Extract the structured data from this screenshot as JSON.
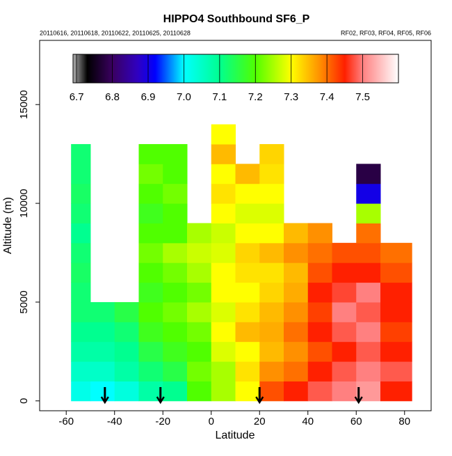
{
  "chart_data": {
    "type": "heatmap",
    "title": "HIPPO4 Southbound SF6_P",
    "subtitle_left": "20110616, 20110618, 20110622, 20110625, 20110628",
    "subtitle_right": "RF02, RF03, RF04, RF05, RF06",
    "x_label": "Latitude",
    "y_label": "Altitude (m)",
    "xlim": [
      -71,
      91
    ],
    "ylim": [
      -500,
      18250
    ],
    "xticks": [
      -60,
      -40,
      -20,
      0,
      20,
      40,
      60,
      80
    ],
    "yticks": [
      0,
      5000,
      10000,
      15000
    ],
    "x_edges": [
      -58,
      -50,
      -40,
      -30,
      -20,
      -10,
      0,
      10,
      20,
      30,
      40,
      50,
      60,
      70,
      83
    ],
    "y_edges": [
      0,
      1000,
      2000,
      3000,
      4000,
      5000,
      6000,
      7000,
      8000,
      9000,
      10000,
      11000,
      12000,
      13000,
      14000
    ],
    "z": [
      [
        7.02,
        7.05,
        7.08,
        7.1,
        7.12,
        7.12,
        7.13,
        7.12,
        7.1,
        7.12,
        7.13,
        7.12,
        7.12,
        null
      ],
      [
        7.0,
        7.05,
        7.08,
        7.1,
        7.12,
        null,
        null,
        null,
        null,
        null,
        null,
        null,
        null,
        null
      ],
      [
        7.03,
        7.08,
        7.1,
        7.12,
        7.15,
        null,
        null,
        null,
        null,
        null,
        null,
        null,
        null,
        null
      ],
      [
        7.08,
        7.12,
        7.15,
        7.18,
        7.2,
        7.18,
        7.2,
        7.22,
        7.2,
        7.18,
        7.2,
        7.22,
        7.2,
        null
      ],
      [
        7.1,
        7.15,
        7.18,
        7.2,
        7.22,
        7.2,
        7.22,
        7.25,
        7.2,
        7.2,
        7.22,
        7.2,
        7.2,
        null
      ],
      [
        7.2,
        7.22,
        7.2,
        7.22,
        7.25,
        7.22,
        7.25,
        7.27,
        7.25,
        null,
        null,
        null,
        null,
        null
      ],
      [
        7.25,
        7.25,
        7.28,
        7.3,
        7.28,
        7.3,
        7.3,
        7.28,
        7.27,
        7.3,
        7.32,
        7.3,
        7.35,
        7.3
      ],
      [
        7.3,
        7.32,
        7.3,
        7.35,
        7.32,
        7.3,
        7.32,
        7.33,
        7.3,
        7.28,
        7.3,
        7.35,
        null,
        null
      ],
      [
        7.42,
        7.38,
        7.35,
        7.36,
        7.35,
        7.33,
        7.32,
        7.35,
        7.3,
        7.28,
        7.3,
        7.32,
        7.33,
        null
      ],
      [
        7.45,
        7.4,
        7.38,
        7.4,
        7.38,
        7.36,
        7.35,
        7.38,
        7.35,
        null,
        null,
        null,
        null,
        null
      ],
      [
        7.48,
        7.45,
        7.42,
        7.45,
        7.43,
        7.45,
        7.42,
        7.4,
        7.38,
        null,
        null,
        null,
        null,
        null
      ],
      [
        7.5,
        7.48,
        7.45,
        7.48,
        7.5,
        7.47,
        7.45,
        7.42,
        null,
        null,
        null,
        null,
        null,
        null
      ],
      [
        7.52,
        7.5,
        7.48,
        7.5,
        7.48,
        7.5,
        7.45,
        7.42,
        7.4,
        7.25,
        6.9,
        6.78,
        null,
        null
      ],
      [
        7.45,
        7.48,
        7.45,
        7.43,
        7.45,
        7.45,
        7.42,
        7.4,
        null,
        null,
        null,
        null,
        null,
        null
      ]
    ],
    "clim": [
      6.69,
      7.6
    ],
    "colorbar_ticks": [
      6.7,
      6.8,
      6.9,
      7.0,
      7.1,
      7.2,
      7.3,
      7.4,
      7.5
    ],
    "colorbar_tick_labels": [
      "6.7",
      "6.8",
      "6.9",
      "7.0",
      "7.1",
      "7.2",
      "7.3",
      "7.4",
      "7.5"
    ],
    "colorscale": [
      {
        "value": 6.69,
        "color": "#b0b0b0"
      },
      {
        "value": 6.73,
        "color": "#000000"
      },
      {
        "value": 6.8,
        "color": "#3a0060"
      },
      {
        "value": 6.87,
        "color": "#3000c0"
      },
      {
        "value": 6.92,
        "color": "#0000ff"
      },
      {
        "value": 7.0,
        "color": "#00ffff"
      },
      {
        "value": 7.1,
        "color": "#00ff90"
      },
      {
        "value": 7.2,
        "color": "#50ff00"
      },
      {
        "value": 7.3,
        "color": "#ffff00"
      },
      {
        "value": 7.38,
        "color": "#ff9000"
      },
      {
        "value": 7.45,
        "color": "#ff2000"
      },
      {
        "value": 7.5,
        "color": "#ff8080"
      },
      {
        "value": 7.6,
        "color": "#ffffff"
      }
    ],
    "arrows": [
      -44,
      -21,
      20,
      61
    ]
  }
}
